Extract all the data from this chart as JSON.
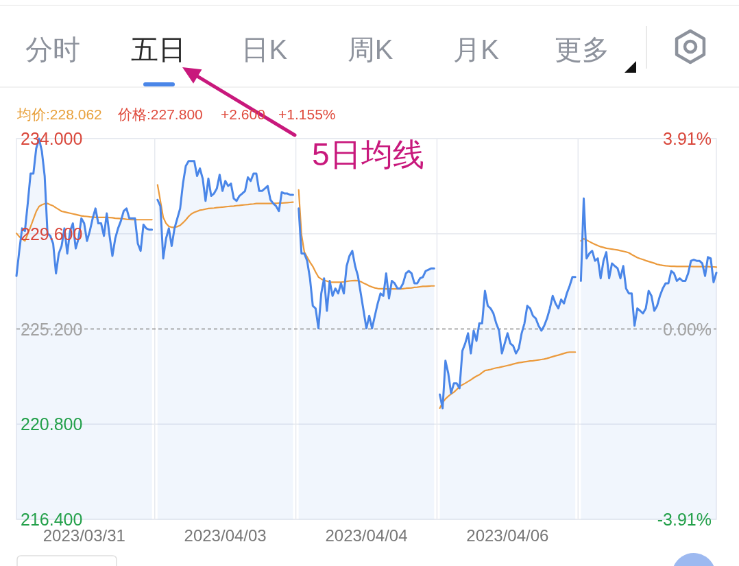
{
  "chart_data": {
    "type": "line",
    "annotations": [
      "分时",
      "五日",
      "日K",
      "周K",
      "月K",
      "更多",
      "均价:228.062",
      "价格:227.800",
      "+2.600",
      "+1.155%",
      "5日均线"
    ],
    "categories": [
      null,
      null,
      null,
      null,
      null,
      null,
      null,
      null,
      null,
      null,
      null,
      null,
      null,
      null,
      null,
      null,
      null,
      null,
      null,
      null,
      null,
      null,
      null,
      null,
      "2023/03/31",
      null,
      null,
      null,
      null,
      null,
      null,
      null,
      null,
      null,
      null,
      null,
      null,
      null,
      null,
      null,
      null,
      null,
      null,
      null,
      null,
      null,
      null,
      null,
      null,
      null,
      null,
      null,
      null,
      null,
      null,
      null,
      null,
      null,
      null,
      null,
      null,
      null,
      null,
      null,
      null,
      null,
      null,
      null,
      null,
      null,
      null,
      null,
      null,
      null,
      "2023/04/03",
      null,
      null,
      null,
      null,
      null,
      null,
      null,
      null,
      null,
      null,
      null,
      null,
      null,
      null,
      null,
      null,
      null,
      null,
      null,
      null,
      null,
      null,
      null,
      null,
      null,
      null,
      null,
      null,
      null,
      null,
      null,
      null,
      null,
      null,
      null,
      null,
      null,
      null,
      null,
      null,
      null,
      null,
      null,
      null,
      null,
      null,
      null,
      null,
      null,
      "2023/04/04",
      null,
      null,
      null,
      null,
      null,
      null,
      null,
      null,
      null,
      null,
      null,
      null,
      null,
      null,
      null,
      null,
      null,
      null,
      null,
      null,
      null,
      null,
      null,
      null,
      null,
      null,
      null,
      null,
      null,
      null,
      null,
      null,
      null,
      null,
      null,
      null,
      null,
      null,
      null,
      null,
      null,
      null,
      null,
      null,
      null,
      null,
      null,
      null,
      null,
      "2023/04/06",
      null,
      null,
      null,
      null,
      null,
      null,
      null,
      null,
      null,
      null,
      null,
      null,
      null,
      null,
      null,
      null,
      null,
      null,
      null,
      null,
      null,
      null,
      null,
      null,
      null,
      null,
      null,
      null,
      null,
      null,
      null,
      null,
      null,
      null,
      null,
      null,
      null,
      null,
      null,
      null,
      null,
      null,
      null,
      null,
      null,
      null,
      null,
      null,
      null,
      null,
      null,
      null,
      null,
      null,
      null,
      null,
      null,
      null,
      null,
      null,
      null,
      null,
      null,
      null,
      null,
      null,
      null,
      null,
      null,
      null,
      null,
      null,
      null,
      null
    ],
    "ylim": [
      216.4,
      234
    ],
    "yticks": [
      {
        "value": 216.4,
        "label": "216.400"
      },
      {
        "value": 220.8,
        "label": "220.800"
      },
      {
        "value": 225.2,
        "label": "225.200"
      },
      {
        "value": 229.6,
        "label": "229.600"
      },
      {
        "value": 234,
        "label": "234.000"
      }
    ],
    "y2lim": [
      -3.91,
      3.91
    ],
    "y2ticks": [
      {
        "value": -3.91,
        "label": "-3.91%"
      },
      {
        "value": 0,
        "label": "0.00%"
      },
      {
        "value": 3.91,
        "label": "3.91%"
      }
    ],
    "grid": "y",
    "ref_lines": [
      {
        "axis": "y",
        "value": 225.2,
        "line_style": "dashed",
        "color": "#8c8c8c"
      }
    ],
    "series": [
      {
        "type": "area",
        "color": "#4a86e8",
        "values": [
          227.65,
          228.81,
          229.85,
          229.73,
          231.0,
          232.38,
          232.38,
          233.54,
          234.0,
          233.42,
          232.27,
          229.62,
          229.5,
          229.15,
          227.77,
          228.69,
          229.04,
          229.85,
          228.69,
          229.73,
          230.08,
          228.92,
          229.38,
          230.31,
          230.08,
          229.27,
          229.73,
          230.31,
          230.77,
          230.08,
          230.08,
          229.5,
          230.54,
          229.5,
          228.58,
          229.38,
          229.85,
          230.19,
          230.65,
          230.77,
          230.31,
          230.31,
          230.31,
          229.15,
          228.81,
          230.02,
          229.85,
          229.79,
          229.79,
          null,
          231.17,
          230.88,
          228.46,
          229.38,
          229.85,
          229.04,
          229.85,
          230.31,
          230.77,
          231.92,
          232.73,
          232.96,
          232.96,
          232.96,
          232.27,
          232.62,
          232.15,
          231.12,
          232.15,
          231.35,
          231.46,
          231.69,
          232.33,
          231.58,
          232.04,
          231.81,
          231.92,
          231.23,
          231.12,
          231.35,
          231.46,
          231.58,
          232.21,
          232.04,
          232.38,
          232.38,
          231.58,
          231.58,
          231.69,
          231.81,
          231.17,
          231.0,
          230.88,
          230.65,
          231.52,
          231.46,
          231.46,
          231.4,
          231.4,
          null,
          230.77,
          228.69,
          228.69,
          228.35,
          227.54,
          226.27,
          226.15,
          225.23,
          226.84,
          227.54,
          226.04,
          227.42,
          226.73,
          227.07,
          226.84,
          227.31,
          226.84,
          228.11,
          228.58,
          228.81,
          228.11,
          227.65,
          226.84,
          226.04,
          225.23,
          225.81,
          225.23,
          225.81,
          226.38,
          226.84,
          226.73,
          227.77,
          226.61,
          227.42,
          227.31,
          227.07,
          227.07,
          227.31,
          227.77,
          227.88,
          227.77,
          227.31,
          227.31,
          227.54,
          227.6,
          227.88,
          227.94,
          228.0,
          228.0,
          null,
          222.17,
          221.54,
          223.73,
          223.15,
          222.23,
          222.69,
          222.69,
          222.46,
          224.19,
          224.53,
          225.0,
          224.07,
          225.12,
          224.65,
          225.46,
          225.46,
          226.96,
          226.27,
          226.15,
          225.92,
          225.46,
          225.12,
          224.07,
          224.53,
          225.0,
          224.53,
          224.42,
          224.07,
          224.3,
          225.0,
          225.46,
          226.27,
          226.15,
          225.81,
          225.69,
          225.35,
          225.12,
          225.35,
          225.69,
          226.15,
          226.73,
          226.38,
          226.15,
          226.56,
          226.38,
          226.84,
          227.19,
          227.6,
          227.6,
          null,
          227.42,
          231.23,
          228.46,
          228.69,
          228.81,
          228.35,
          228.46,
          227.54,
          228.35,
          228.75,
          227.54,
          228.23,
          228.11,
          228.0,
          227.54,
          228.11,
          227.07,
          226.84,
          226.84,
          225.35,
          226.15,
          226.04,
          225.92,
          226.15,
          226.96,
          226.73,
          226.04,
          226.27,
          226.73,
          227.07,
          227.31,
          227.31,
          227.88,
          227.77,
          227.42,
          227.54,
          227.42,
          227.42,
          227.77,
          228.35,
          228.4,
          228.35,
          228.35,
          228.23,
          227.65,
          228.52,
          228.46,
          227.36,
          227.8
        ]
      },
      {
        "color": "#eb9a3c",
        "values": [
          229.62,
          229.47,
          229.36,
          229.27,
          229.59,
          229.92,
          230.28,
          230.63,
          230.86,
          230.94,
          230.99,
          231.0,
          230.94,
          230.89,
          230.8,
          230.72,
          230.64,
          230.61,
          230.58,
          230.55,
          230.52,
          230.49,
          230.46,
          230.43,
          230.41,
          230.4,
          230.38,
          230.37,
          230.36,
          230.36,
          230.36,
          230.36,
          230.36,
          230.35,
          230.34,
          230.32,
          230.31,
          230.3,
          230.29,
          230.27,
          230.26,
          230.25,
          230.25,
          230.25,
          230.25,
          230.25,
          230.25,
          230.25,
          230.25,
          null,
          231.86,
          231.12,
          230.36,
          230.08,
          229.94,
          229.9,
          229.9,
          229.93,
          229.99,
          230.11,
          230.24,
          230.4,
          230.52,
          230.59,
          230.64,
          230.69,
          230.71,
          230.74,
          230.77,
          230.78,
          230.79,
          230.81,
          230.82,
          230.83,
          230.85,
          230.86,
          230.87,
          230.88,
          230.9,
          230.91,
          230.93,
          230.94,
          230.95,
          230.97,
          230.98,
          231.0,
          231.0,
          231.0,
          231.0,
          231.0,
          231.0,
          231.01,
          231.01,
          231.02,
          231.02,
          231.03,
          231.04,
          231.05,
          231.06,
          null,
          231.63,
          229.56,
          228.76,
          228.52,
          228.29,
          228.09,
          227.83,
          227.6,
          227.51,
          227.45,
          227.41,
          227.37,
          227.36,
          227.36,
          227.36,
          227.36,
          227.38,
          227.4,
          227.42,
          227.43,
          227.44,
          227.43,
          227.39,
          227.32,
          227.26,
          227.19,
          227.14,
          227.1,
          227.07,
          227.06,
          227.06,
          227.05,
          227.05,
          227.05,
          227.05,
          227.05,
          227.05,
          227.06,
          227.08,
          227.09,
          227.1,
          227.12,
          227.13,
          227.15,
          227.17,
          227.17,
          227.18,
          227.19,
          227.19,
          null,
          221.54,
          221.8,
          221.97,
          222.09,
          222.19,
          222.28,
          222.4,
          222.54,
          222.62,
          222.69,
          222.77,
          222.85,
          222.94,
          223.02,
          223.08,
          223.18,
          223.28,
          223.3,
          223.33,
          223.37,
          223.4,
          223.42,
          223.45,
          223.48,
          223.51,
          223.54,
          223.58,
          223.61,
          223.64,
          223.66,
          223.68,
          223.7,
          223.72,
          223.73,
          223.75,
          223.77,
          223.79,
          223.81,
          223.84,
          223.88,
          223.92,
          223.96,
          223.99,
          224.03,
          224.07,
          224.11,
          224.13,
          224.13,
          224.13,
          null,
          229.27,
          229.37,
          229.31,
          229.24,
          229.17,
          229.11,
          229.05,
          229.0,
          228.97,
          228.93,
          228.91,
          228.89,
          228.87,
          228.85,
          228.82,
          228.79,
          228.76,
          228.72,
          228.64,
          228.57,
          228.5,
          228.45,
          228.41,
          228.36,
          228.32,
          228.28,
          228.24,
          228.19,
          228.16,
          228.14,
          228.12,
          228.11,
          228.1,
          228.1,
          228.09,
          228.09,
          228.09,
          228.09,
          228.09,
          228.09,
          228.08,
          228.08,
          228.08,
          228.08,
          228.08,
          228.08,
          228.07,
          228.07,
          228.06
        ]
      }
    ]
  }
}
